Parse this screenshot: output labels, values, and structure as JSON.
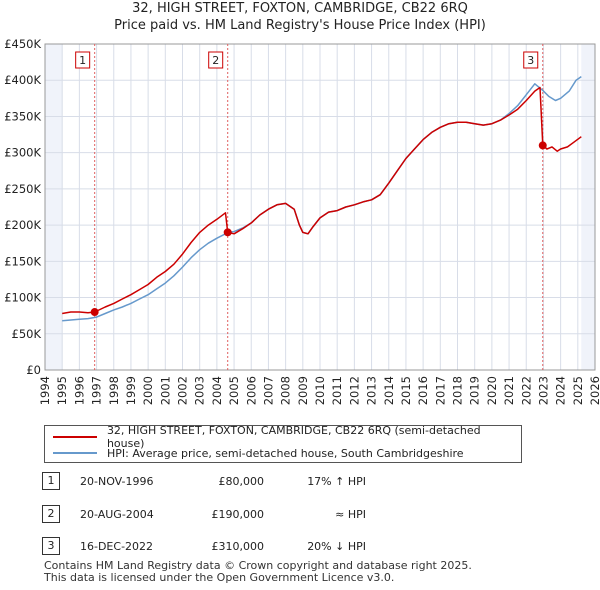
{
  "chart_data": {
    "type": "line",
    "title": "32, HIGH STREET, FOXTON, CAMBRIDGE, CB22 6RQ",
    "subtitle": "Price paid vs. HM Land Registry's House Price Index (HPI)",
    "xlim": [
      1994,
      2026
    ],
    "ylim": [
      0,
      450000
    ],
    "x_ticks": [
      "1994",
      "1995",
      "1996",
      "1997",
      "1998",
      "1999",
      "2000",
      "2001",
      "2002",
      "2003",
      "2004",
      "2005",
      "2006",
      "2007",
      "2008",
      "2009",
      "2010",
      "2011",
      "2012",
      "2013",
      "2014",
      "2015",
      "2016",
      "2017",
      "2018",
      "2019",
      "2020",
      "2021",
      "2022",
      "2023",
      "2024",
      "2025",
      "2026"
    ],
    "y_ticks": [
      {
        "value": 0,
        "label": "£0"
      },
      {
        "value": 50000,
        "label": "£50K"
      },
      {
        "value": 100000,
        "label": "£100K"
      },
      {
        "value": 150000,
        "label": "£150K"
      },
      {
        "value": 200000,
        "label": "£200K"
      },
      {
        "value": 250000,
        "label": "£250K"
      },
      {
        "value": 300000,
        "label": "£300K"
      },
      {
        "value": 350000,
        "label": "£350K"
      },
      {
        "value": 400000,
        "label": "£400K"
      },
      {
        "value": 450000,
        "label": "£450K"
      }
    ],
    "data_range": [
      1995.0,
      2025.2
    ],
    "series": [
      {
        "name": "32, HIGH STREET, FOXTON, CAMBRIDGE, CB22 6RQ (semi-detached house)",
        "color": "#cc0000",
        "points": [
          [
            1995.0,
            78000
          ],
          [
            1995.5,
            80000
          ],
          [
            1996.0,
            80000
          ],
          [
            1996.5,
            79000
          ],
          [
            1996.89,
            80000
          ],
          [
            1997.5,
            87000
          ],
          [
            1998.0,
            92000
          ],
          [
            1998.5,
            98000
          ],
          [
            1999.0,
            104000
          ],
          [
            1999.5,
            111000
          ],
          [
            2000.0,
            118000
          ],
          [
            2000.5,
            128000
          ],
          [
            2001.0,
            136000
          ],
          [
            2001.5,
            146000
          ],
          [
            2002.0,
            160000
          ],
          [
            2002.5,
            176000
          ],
          [
            2003.0,
            190000
          ],
          [
            2003.5,
            200000
          ],
          [
            2004.0,
            208000
          ],
          [
            2004.5,
            217000
          ],
          [
            2004.63,
            190000
          ],
          [
            2005.0,
            188000
          ],
          [
            2005.5,
            195000
          ],
          [
            2006.0,
            203000
          ],
          [
            2006.5,
            214000
          ],
          [
            2007.0,
            222000
          ],
          [
            2007.5,
            228000
          ],
          [
            2008.0,
            230000
          ],
          [
            2008.5,
            222000
          ],
          [
            2008.8,
            200000
          ],
          [
            2009.0,
            190000
          ],
          [
            2009.3,
            188000
          ],
          [
            2009.6,
            198000
          ],
          [
            2010.0,
            210000
          ],
          [
            2010.5,
            218000
          ],
          [
            2011.0,
            220000
          ],
          [
            2011.5,
            225000
          ],
          [
            2012.0,
            228000
          ],
          [
            2012.5,
            232000
          ],
          [
            2013.0,
            235000
          ],
          [
            2013.5,
            242000
          ],
          [
            2014.0,
            258000
          ],
          [
            2014.5,
            275000
          ],
          [
            2015.0,
            292000
          ],
          [
            2015.5,
            305000
          ],
          [
            2016.0,
            318000
          ],
          [
            2016.5,
            328000
          ],
          [
            2017.0,
            335000
          ],
          [
            2017.5,
            340000
          ],
          [
            2018.0,
            342000
          ],
          [
            2018.5,
            342000
          ],
          [
            2019.0,
            340000
          ],
          [
            2019.5,
            338000
          ],
          [
            2020.0,
            340000
          ],
          [
            2020.5,
            345000
          ],
          [
            2021.0,
            352000
          ],
          [
            2021.5,
            360000
          ],
          [
            2022.0,
            372000
          ],
          [
            2022.5,
            385000
          ],
          [
            2022.8,
            390000
          ],
          [
            2022.96,
            310000
          ],
          [
            2023.2,
            305000
          ],
          [
            2023.5,
            308000
          ],
          [
            2023.8,
            302000
          ],
          [
            2024.0,
            305000
          ],
          [
            2024.4,
            308000
          ],
          [
            2024.8,
            315000
          ],
          [
            2025.2,
            322000
          ]
        ]
      },
      {
        "name": "HPI: Average price, semi-detached house, South Cambridgeshire",
        "color": "#6699cc",
        "points": [
          [
            1995.0,
            68000
          ],
          [
            1995.5,
            69000
          ],
          [
            1996.0,
            70000
          ],
          [
            1996.5,
            71000
          ],
          [
            1997.0,
            73000
          ],
          [
            1997.5,
            78000
          ],
          [
            1998.0,
            83000
          ],
          [
            1998.5,
            87000
          ],
          [
            1999.0,
            92000
          ],
          [
            1999.5,
            98000
          ],
          [
            2000.0,
            104000
          ],
          [
            2000.5,
            112000
          ],
          [
            2001.0,
            120000
          ],
          [
            2001.5,
            130000
          ],
          [
            2002.0,
            142000
          ],
          [
            2002.5,
            155000
          ],
          [
            2003.0,
            166000
          ],
          [
            2003.5,
            175000
          ],
          [
            2004.0,
            182000
          ],
          [
            2004.5,
            188000
          ],
          [
            2004.63,
            190000
          ],
          [
            2005.0,
            191000
          ],
          [
            2005.5,
            196000
          ],
          [
            2006.0,
            203000
          ],
          [
            2006.5,
            214000
          ],
          [
            2007.0,
            222000
          ],
          [
            2007.5,
            228000
          ],
          [
            2008.0,
            230000
          ],
          [
            2008.5,
            222000
          ],
          [
            2008.8,
            200000
          ],
          [
            2009.0,
            190000
          ],
          [
            2009.3,
            188000
          ],
          [
            2009.6,
            198000
          ],
          [
            2010.0,
            210000
          ],
          [
            2010.5,
            218000
          ],
          [
            2011.0,
            220000
          ],
          [
            2011.5,
            225000
          ],
          [
            2012.0,
            228000
          ],
          [
            2012.5,
            232000
          ],
          [
            2013.0,
            235000
          ],
          [
            2013.5,
            242000
          ],
          [
            2014.0,
            258000
          ],
          [
            2014.5,
            275000
          ],
          [
            2015.0,
            292000
          ],
          [
            2015.5,
            305000
          ],
          [
            2016.0,
            318000
          ],
          [
            2016.5,
            328000
          ],
          [
            2017.0,
            335000
          ],
          [
            2017.5,
            340000
          ],
          [
            2018.0,
            342000
          ],
          [
            2018.5,
            342000
          ],
          [
            2019.0,
            340000
          ],
          [
            2019.5,
            338000
          ],
          [
            2020.0,
            340000
          ],
          [
            2020.5,
            345000
          ],
          [
            2021.0,
            354000
          ],
          [
            2021.5,
            365000
          ],
          [
            2022.0,
            380000
          ],
          [
            2022.5,
            395000
          ],
          [
            2022.96,
            386000
          ],
          [
            2023.3,
            378000
          ],
          [
            2023.7,
            372000
          ],
          [
            2024.0,
            375000
          ],
          [
            2024.5,
            385000
          ],
          [
            2024.9,
            400000
          ],
          [
            2025.2,
            405000
          ]
        ]
      }
    ],
    "sales": [
      {
        "label": "1",
        "x": 1996.89,
        "y": 80000
      },
      {
        "label": "2",
        "x": 2004.63,
        "y": 190000
      },
      {
        "label": "3",
        "x": 2022.96,
        "y": 310000
      }
    ],
    "grid": true
  },
  "legend": {
    "property": "32, HIGH STREET, FOXTON, CAMBRIDGE, CB22 6RQ (semi-detached house)",
    "hpi": "HPI: Average price, semi-detached house, South Cambridgeshire",
    "property_color": "#cc0000",
    "hpi_color": "#6699cc"
  },
  "sales_table": [
    {
      "num": "1",
      "date": "20-NOV-1996",
      "price": "£80,000",
      "hpi": "17% ↑ HPI"
    },
    {
      "num": "2",
      "date": "20-AUG-2004",
      "price": "£190,000",
      "hpi": "≈ HPI"
    },
    {
      "num": "3",
      "date": "16-DEC-2022",
      "price": "£310,000",
      "hpi": "20% ↓ HPI"
    }
  ],
  "footer": {
    "line1": "Contains HM Land Registry data © Crown copyright and database right 2025.",
    "line2": "This data is licensed under the Open Government Licence v3.0."
  }
}
